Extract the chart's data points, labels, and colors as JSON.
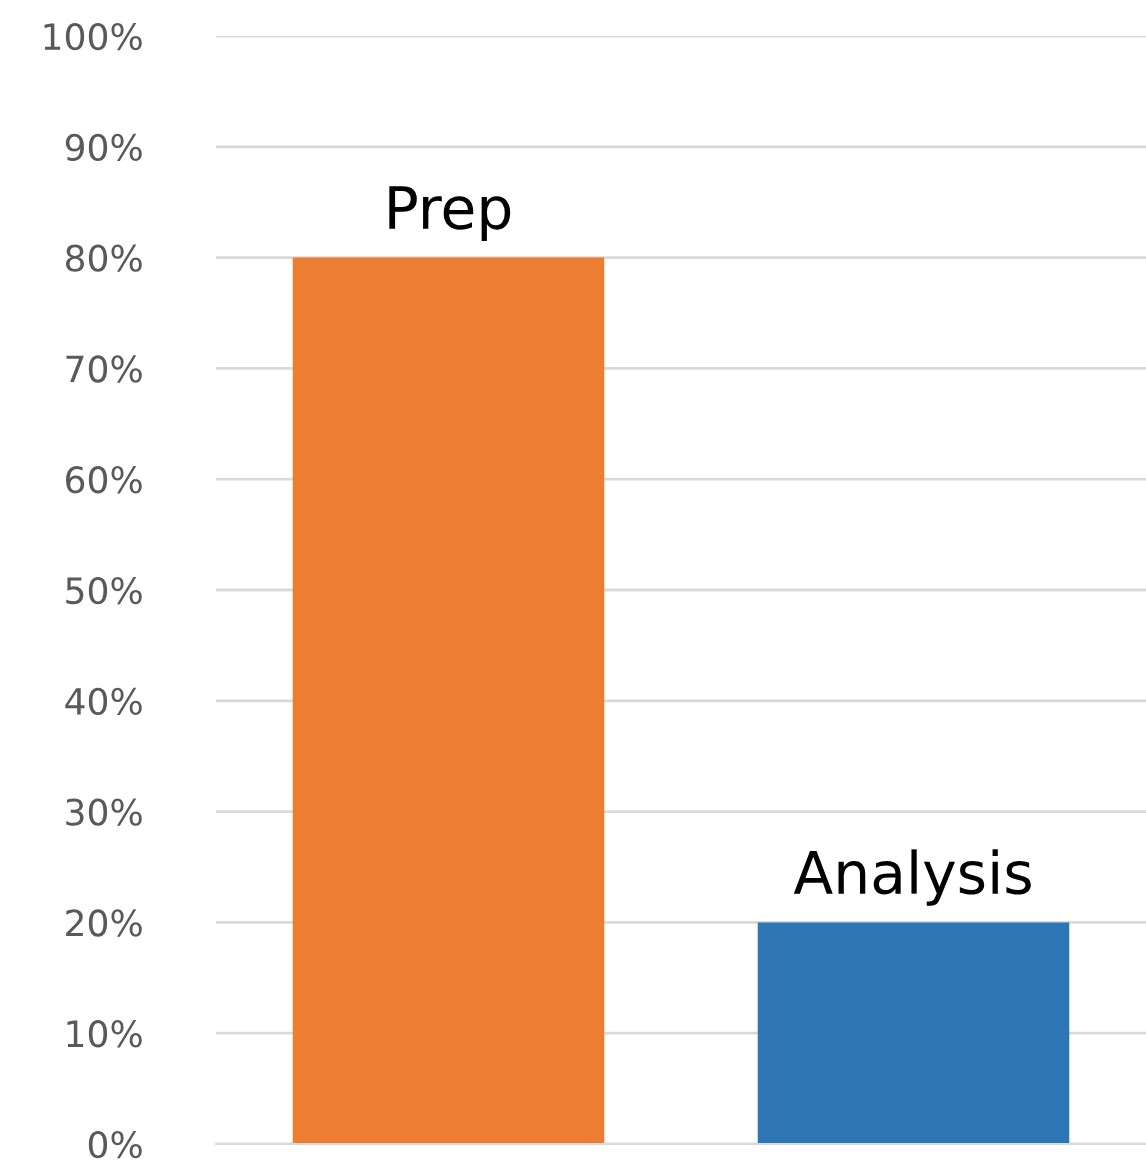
{
  "chart_data": {
    "type": "bar",
    "categories": [
      "Prep",
      "Analysis"
    ],
    "values": [
      80,
      20
    ],
    "colors": [
      "#ed7d31",
      "#2e75b6"
    ],
    "ylim": [
      0,
      100
    ],
    "yticks": [
      {
        "value": 0,
        "label": "0%"
      },
      {
        "value": 10,
        "label": "10%"
      },
      {
        "value": 20,
        "label": "20%"
      },
      {
        "value": 30,
        "label": "30%"
      },
      {
        "value": 40,
        "label": "40%"
      },
      {
        "value": 50,
        "label": "50%"
      },
      {
        "value": 60,
        "label": "60%"
      },
      {
        "value": 70,
        "label": "70%"
      },
      {
        "value": 80,
        "label": "80%"
      },
      {
        "value": 90,
        "label": "90%"
      },
      {
        "value": 100,
        "label": "100%"
      }
    ],
    "grid": "y",
    "legend": false
  }
}
